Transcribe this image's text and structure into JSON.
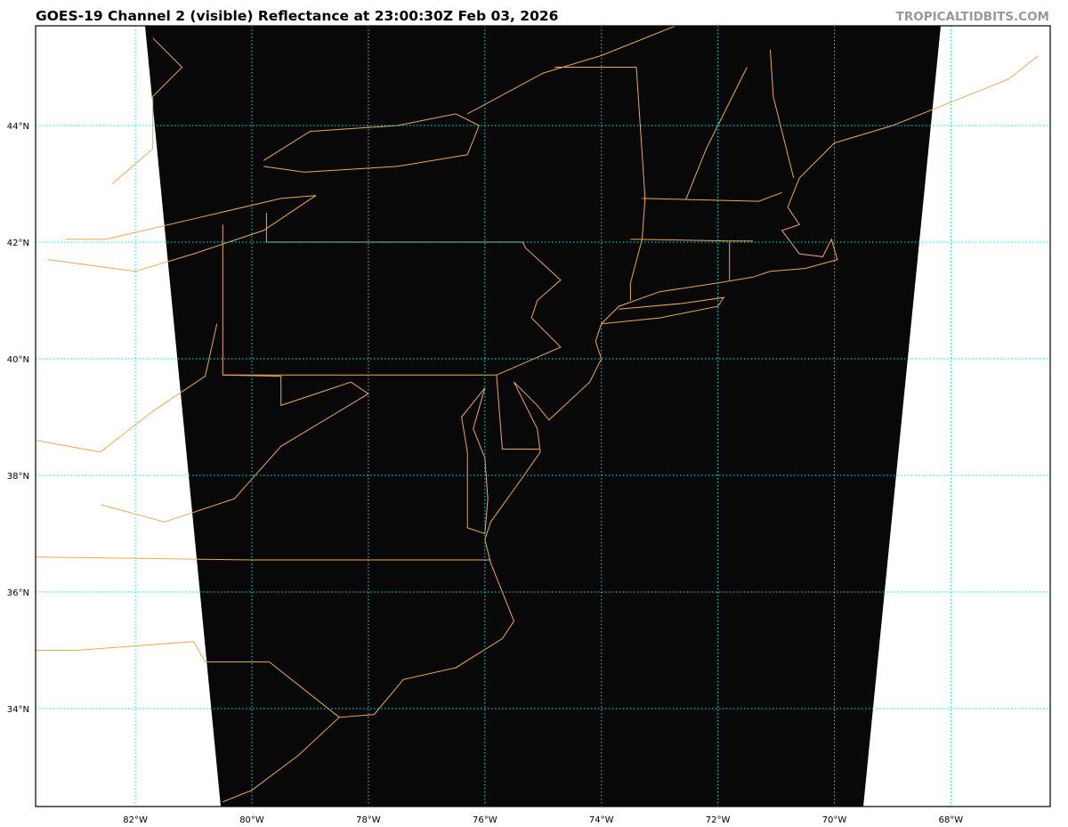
{
  "header": {
    "title": "GOES-19 Channel 2 (visible) Reflectance at 23:00:30Z Feb 03, 2026",
    "watermark": "TROPICALTIDBITS.COM"
  },
  "map": {
    "projection_extent": {
      "lon": [
        -83.7,
        -66.3
      ],
      "lat": [
        32.4,
        45.8
      ]
    },
    "longitude_labels": [
      {
        "lon": -82,
        "label": "82°W"
      },
      {
        "lon": -80,
        "label": "80°W"
      },
      {
        "lon": -78,
        "label": "78°W"
      },
      {
        "lon": -76,
        "label": "76°W"
      },
      {
        "lon": -74,
        "label": "74°W"
      },
      {
        "lon": -72,
        "label": "72°W"
      },
      {
        "lon": -70,
        "label": "70°W"
      },
      {
        "lon": -68,
        "label": "68°W"
      }
    ],
    "latitude_labels": [
      {
        "lat": 44,
        "label": "44°N"
      },
      {
        "lat": 42,
        "label": "42°N"
      },
      {
        "lat": 40,
        "label": "40°N"
      },
      {
        "lat": 38,
        "label": "38°N"
      },
      {
        "lat": 36,
        "label": "36°N"
      },
      {
        "lat": 34,
        "label": "34°N"
      }
    ],
    "colors": {
      "imagery": "#080808",
      "coastline": "#f0a850",
      "gridline": "#00e5e5",
      "background": "#ffffff"
    }
  }
}
